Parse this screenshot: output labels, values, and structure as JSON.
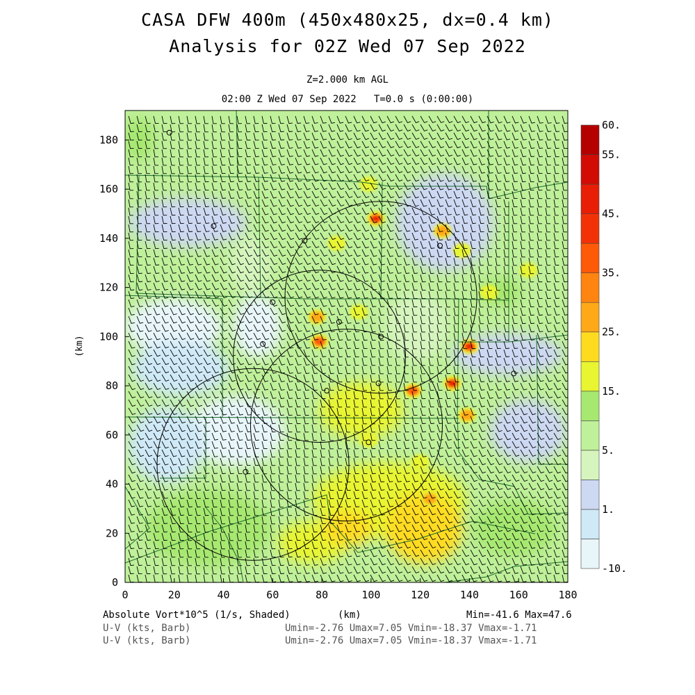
{
  "header": {
    "title_line1": "CASA DFW 400m (450x480x25, dx=0.4 km)",
    "title_line2": "Analysis for 02Z Wed 07 Sep 2022",
    "level_line": "Z=2.000 km AGL",
    "time_line": "02:00 Z Wed 07 Sep 2022   T=0.0 s (0:00:00)"
  },
  "map": {
    "x_axis_label": "(km)",
    "y_axis_label": "(km)",
    "x_ticks": [
      0,
      20,
      40,
      60,
      80,
      100,
      120,
      140,
      160,
      180
    ],
    "y_ticks": [
      0,
      20,
      40,
      60,
      80,
      100,
      120,
      140,
      160,
      180
    ],
    "x_range": [
      0,
      180
    ],
    "y_range": [
      0,
      192
    ],
    "radar_rings": [
      {
        "cx": 104,
        "cy": 116,
        "r": 39
      },
      {
        "cx": 79,
        "cy": 92,
        "r": 35
      },
      {
        "cx": 90,
        "cy": 64,
        "r": 39
      },
      {
        "cx": 52,
        "cy": 48,
        "r": 39
      }
    ],
    "station_markers": [
      [
        18,
        183
      ],
      [
        36,
        145
      ],
      [
        73,
        139
      ],
      [
        60,
        114
      ],
      [
        56,
        97
      ],
      [
        87,
        106
      ],
      [
        104,
        100
      ],
      [
        82,
        78
      ],
      [
        103,
        81
      ],
      [
        99,
        57
      ],
      [
        49,
        45
      ],
      [
        128,
        137
      ],
      [
        158,
        85
      ]
    ],
    "vorticity_maxima": [
      {
        "x": 102,
        "y": 148,
        "value": 45
      },
      {
        "x": 129,
        "y": 143,
        "value": 25
      },
      {
        "x": 137,
        "y": 135,
        "value": 20
      },
      {
        "x": 99,
        "y": 162,
        "value": 20
      },
      {
        "x": 86,
        "y": 138,
        "value": 20
      },
      {
        "x": 78,
        "y": 108,
        "value": 25
      },
      {
        "x": 79,
        "y": 98,
        "value": 35
      },
      {
        "x": 117,
        "y": 78,
        "value": 40
      },
      {
        "x": 133,
        "y": 81,
        "value": 45
      },
      {
        "x": 140,
        "y": 96,
        "value": 45
      },
      {
        "x": 164,
        "y": 127,
        "value": 20
      },
      {
        "x": 148,
        "y": 118,
        "value": 15
      },
      {
        "x": 99,
        "y": 58,
        "value": 15
      },
      {
        "x": 120,
        "y": 49,
        "value": 15
      },
      {
        "x": 124,
        "y": 34,
        "value": 25
      },
      {
        "x": 139,
        "y": 68,
        "value": 25
      },
      {
        "x": 95,
        "y": 110,
        "value": 15
      }
    ]
  },
  "colorbar": {
    "colors": [
      "#e8f6fa",
      "#cfe9f7",
      "#cdd8f2",
      "#d6f5be",
      "#bff09a",
      "#a6e870",
      "#e8f530",
      "#ffdb20",
      "#ffa818",
      "#ff8410",
      "#ff5a08",
      "#f23206",
      "#e81e06",
      "#d20c04",
      "#b50000"
    ],
    "labels": [
      {
        "text": "60.",
        "index": 15
      },
      {
        "text": "55.",
        "index": 14
      },
      {
        "text": "45.",
        "index": 12
      },
      {
        "text": "35.",
        "index": 10
      },
      {
        "text": "25.",
        "index": 8
      },
      {
        "text": "15.",
        "index": 6
      },
      {
        "text": "5.",
        "index": 4
      },
      {
        "text": "1.",
        "index": 2
      },
      {
        "text": "-10.",
        "index": 0
      }
    ]
  },
  "footer": {
    "field_label": "Absolute Vort*10^5 (1/s, Shaded)",
    "x_unit": "(km)",
    "min_max": "Min=-41.6 Max=47.6",
    "barb_label_1": "U-V (kts, Barb)",
    "barb_stats_1": "Umin=-2.76 Umax=7.05 Vmin=-18.37 Vmax=-1.71",
    "barb_label_2": "U-V (kts, Barb)",
    "barb_stats_2": "Umin=-2.76 Umax=7.05 Vmin=-18.37 Vmax=-1.71"
  }
}
